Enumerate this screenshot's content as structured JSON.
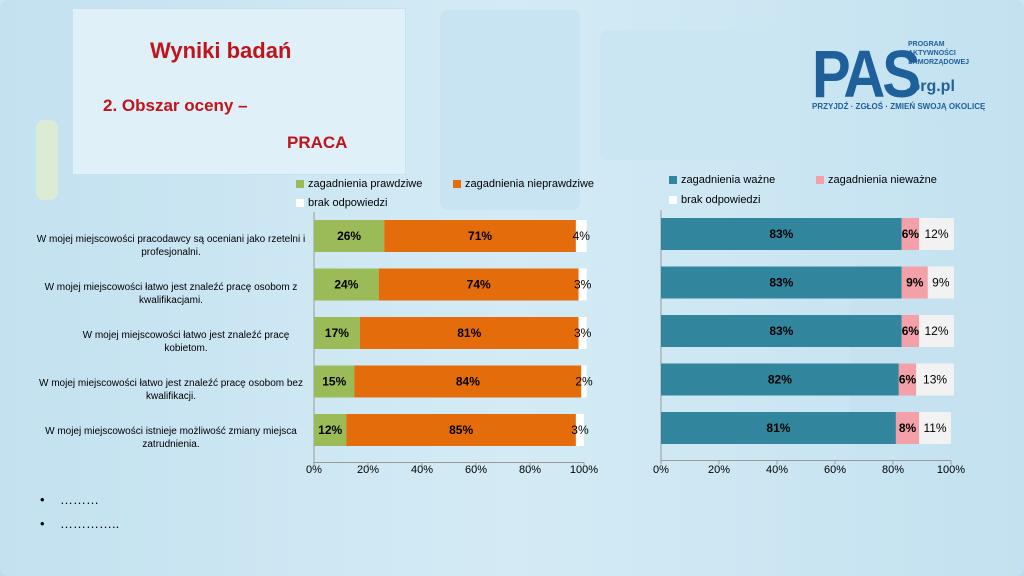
{
  "slide": {
    "title": "Wyniki badań",
    "subtitle_line1": "2. Obszar oceny –",
    "subtitle_line2": "PRACA"
  },
  "logo": {
    "big": "PAS",
    "side_lines": [
      "PROGRAM",
      "AKTYWNOŚCI",
      "SAMORZĄDOWEJ"
    ],
    "org": ".org.pl",
    "slogan": "PRZYJDŹ · ZGŁOŚ · ZMIEŃ SWOJĄ OKOLICĘ"
  },
  "bullets": [
    "………",
    "………….."
  ],
  "colors": {
    "green": "#9bbb59",
    "orange": "#e46c0a",
    "white": "#ffffff",
    "teal": "#31859c",
    "pink": "#f4a0a8",
    "lightgray": "#f2f2f2"
  },
  "chart_data": [
    {
      "type": "bar",
      "orientation": "horizontal",
      "stacked": "100%",
      "categories": [
        "W mojej miejscowości pracodawcy są oceniani jako rzetelni i profesjonalni.",
        "W mojej miejscowości łatwo jest znaleźć pracę osobom z kwalifikacjami.",
        "W mojej miejscowości łatwo jest znaleźć pracę kobietom.",
        "W mojej miejscowości łatwo jest znaleźć pracę osobom bez kwalifikacji.",
        "W mojej miejscowości istnieje możliwość zmiany miejsca zatrudnienia."
      ],
      "series": [
        {
          "name": "zagadnienia prawdziwe",
          "values": [
            26,
            24,
            17,
            15,
            12
          ],
          "labels": [
            "26%",
            "24%",
            "17%",
            "15%",
            "12%"
          ]
        },
        {
          "name": "zagadnienia nieprawdziwe",
          "values": [
            71,
            74,
            81,
            84,
            85
          ],
          "labels": [
            "71%",
            "74%",
            "81%",
            "84%",
            "85%"
          ]
        },
        {
          "name": "brak odpowiedzi",
          "values": [
            4,
            3,
            3,
            2,
            3
          ],
          "labels": [
            "4%",
            "3%",
            "3%",
            "2%",
            "3%"
          ]
        }
      ],
      "xticks": [
        "0%",
        "20%",
        "40%",
        "60%",
        "80%",
        "100%"
      ],
      "xlim": [
        0,
        100
      ],
      "legend_position": "top"
    },
    {
      "type": "bar",
      "orientation": "horizontal",
      "stacked": "100%",
      "series": [
        {
          "name": "zagadnienia ważne",
          "values": [
            83,
            83,
            83,
            82,
            81
          ],
          "labels": [
            "83%",
            "83%",
            "83%",
            "82%",
            "81%"
          ]
        },
        {
          "name": "zagadnienia nieważne",
          "values": [
            6,
            9,
            6,
            6,
            8
          ],
          "labels": [
            "6%",
            "9%",
            "6%",
            "6%",
            "8%"
          ]
        },
        {
          "name": "brak odpowiedzi",
          "values": [
            12,
            9,
            12,
            13,
            11
          ],
          "labels": [
            "12%",
            "9%",
            "12%",
            "13%",
            "11%"
          ]
        }
      ],
      "xticks": [
        "0%",
        "20%",
        "40%",
        "60%",
        "80%",
        "100%"
      ],
      "xlim": [
        0,
        100
      ],
      "legend_position": "top"
    }
  ]
}
